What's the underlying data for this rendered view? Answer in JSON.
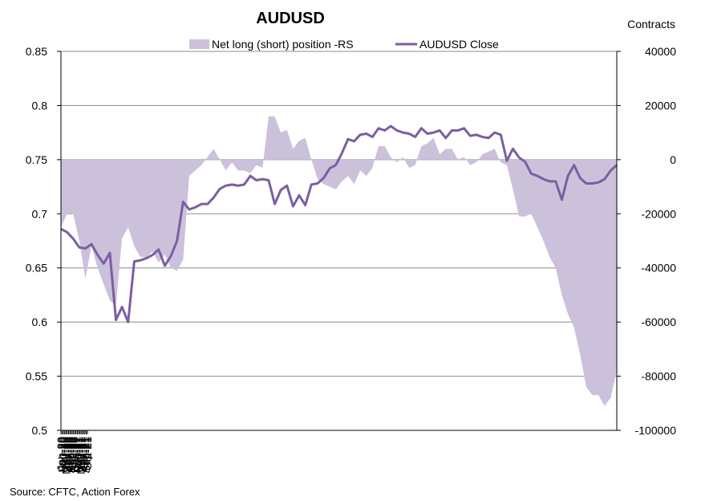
{
  "chart_data": {
    "type": "line",
    "title": "AUDUSD",
    "right_axis_title": "Contracts",
    "source": "Source: CFTC, Action Forex",
    "x_tick_labels": [
      "Jan-20",
      "Feb-20",
      "Mar-20",
      "Apr-20",
      "May-20",
      "Jun-20",
      "Jul-20",
      "Aug-20",
      "Sep-20",
      "Oct-20",
      "Nov-20",
      "Dec-20",
      "Jan-21",
      "Feb-21",
      "Mar-21",
      "Apr-21",
      "May-21",
      "Jun-21",
      "Jul-21",
      "Aug-21",
      "Sep-21",
      "Oct-21"
    ],
    "x_range": [
      0,
      91
    ],
    "y_left": {
      "min": 0.5,
      "max": 0.85,
      "ticks": [
        "0.5",
        "0.55",
        "0.6",
        "0.65",
        "0.7",
        "0.75",
        "0.8",
        "0.85"
      ]
    },
    "y_right": {
      "min": -100000,
      "max": 40000,
      "ticks": [
        "-100000",
        "-80000",
        "-60000",
        "-40000",
        "-20000",
        "0",
        "20000",
        "40000"
      ]
    },
    "grid": "horizontal",
    "legend_position": "top",
    "colors": {
      "area": "#ccc1db",
      "line": "#7b5fa0",
      "grid": "#8c8c8c"
    },
    "series": [
      {
        "name": "Net long (short) position -RS",
        "type": "area",
        "axis": "right",
        "x": [
          0,
          1,
          2,
          3,
          4,
          5,
          6,
          7,
          8,
          9,
          10,
          11,
          12,
          13,
          14,
          15,
          16,
          17,
          18,
          19,
          20,
          21,
          22,
          23,
          24,
          25,
          26,
          27,
          28,
          29,
          30,
          31,
          32,
          33,
          34,
          35,
          36,
          37,
          38,
          39,
          40,
          41,
          42,
          43,
          44,
          45,
          46,
          47,
          48,
          49,
          50,
          51,
          52,
          53,
          54,
          55,
          56,
          57,
          58,
          59,
          60,
          61,
          62,
          63,
          64,
          65,
          66,
          67,
          68,
          69,
          70,
          71,
          72,
          73,
          74,
          75,
          76,
          77,
          78,
          79,
          80,
          81,
          82,
          83,
          84,
          85,
          86,
          87,
          88,
          89,
          90,
          91
        ],
        "values": [
          -25000,
          -20000,
          -20000,
          -30000,
          -44000,
          -32000,
          -40000,
          -46000,
          -52000,
          -54000,
          -29000,
          -25000,
          -32000,
          -36000,
          -36000,
          -34000,
          -38000,
          -35000,
          -40000,
          -41000,
          -37000,
          -6000,
          -4000,
          -2000,
          1000,
          4000,
          0,
          -4000,
          -1000,
          -4000,
          -4000,
          -5000,
          -2000,
          -3000,
          16000,
          16000,
          10000,
          11000,
          4000,
          7000,
          8000,
          0,
          -7000,
          -9000,
          -10000,
          -11000,
          -8000,
          -6000,
          -9000,
          -4000,
          -6000,
          -3000,
          5000,
          5000,
          1000,
          -1000,
          1000,
          -3000,
          -2000,
          5000,
          6000,
          8000,
          2000,
          4000,
          4000,
          0,
          1000,
          -2000,
          -1000,
          2000,
          3000,
          4000,
          -1000,
          -2000,
          -11000,
          -21000,
          -21000,
          -20000,
          -25000,
          -30000,
          -36000,
          -40000,
          -50000,
          -57000,
          -62000,
          -72000,
          -84000,
          -87000,
          -87000,
          -91000,
          -88000,
          -78000
        ]
      },
      {
        "name": "AUDUSD Close",
        "type": "line",
        "axis": "left",
        "x": [
          0,
          1,
          2,
          3,
          4,
          5,
          6,
          7,
          8,
          9,
          10,
          11,
          12,
          13,
          14,
          15,
          16,
          17,
          18,
          19,
          20,
          21,
          22,
          23,
          24,
          25,
          26,
          27,
          28,
          29,
          30,
          31,
          32,
          33,
          34,
          35,
          36,
          37,
          38,
          39,
          40,
          41,
          42,
          43,
          44,
          45,
          46,
          47,
          48,
          49,
          50,
          51,
          52,
          53,
          54,
          55,
          56,
          57,
          58,
          59,
          60,
          61,
          62,
          63,
          64,
          65,
          66,
          67,
          68,
          69,
          70,
          71,
          72,
          73,
          74,
          75,
          76,
          77,
          78,
          79,
          80,
          81,
          82,
          83,
          84,
          85,
          86,
          87,
          88,
          89,
          90,
          91
        ],
        "values": [
          0.686,
          0.683,
          0.677,
          0.669,
          0.668,
          0.672,
          0.662,
          0.654,
          0.664,
          0.602,
          0.614,
          0.6,
          0.656,
          0.657,
          0.659,
          0.662,
          0.667,
          0.652,
          0.661,
          0.675,
          0.711,
          0.704,
          0.706,
          0.709,
          0.709,
          0.715,
          0.723,
          0.726,
          0.727,
          0.726,
          0.727,
          0.735,
          0.731,
          0.732,
          0.731,
          0.709,
          0.722,
          0.726,
          0.707,
          0.717,
          0.708,
          0.727,
          0.728,
          0.733,
          0.742,
          0.745,
          0.756,
          0.769,
          0.767,
          0.773,
          0.774,
          0.771,
          0.779,
          0.777,
          0.781,
          0.777,
          0.775,
          0.774,
          0.771,
          0.779,
          0.774,
          0.775,
          0.777,
          0.77,
          0.777,
          0.777,
          0.779,
          0.772,
          0.773,
          0.771,
          0.77,
          0.775,
          0.773,
          0.749,
          0.76,
          0.752,
          0.748,
          0.737,
          0.735,
          0.732,
          0.73,
          0.73,
          0.713,
          0.735,
          0.745,
          0.733,
          0.728,
          0.728,
          0.729,
          0.732,
          0.74,
          0.745
        ]
      }
    ]
  }
}
